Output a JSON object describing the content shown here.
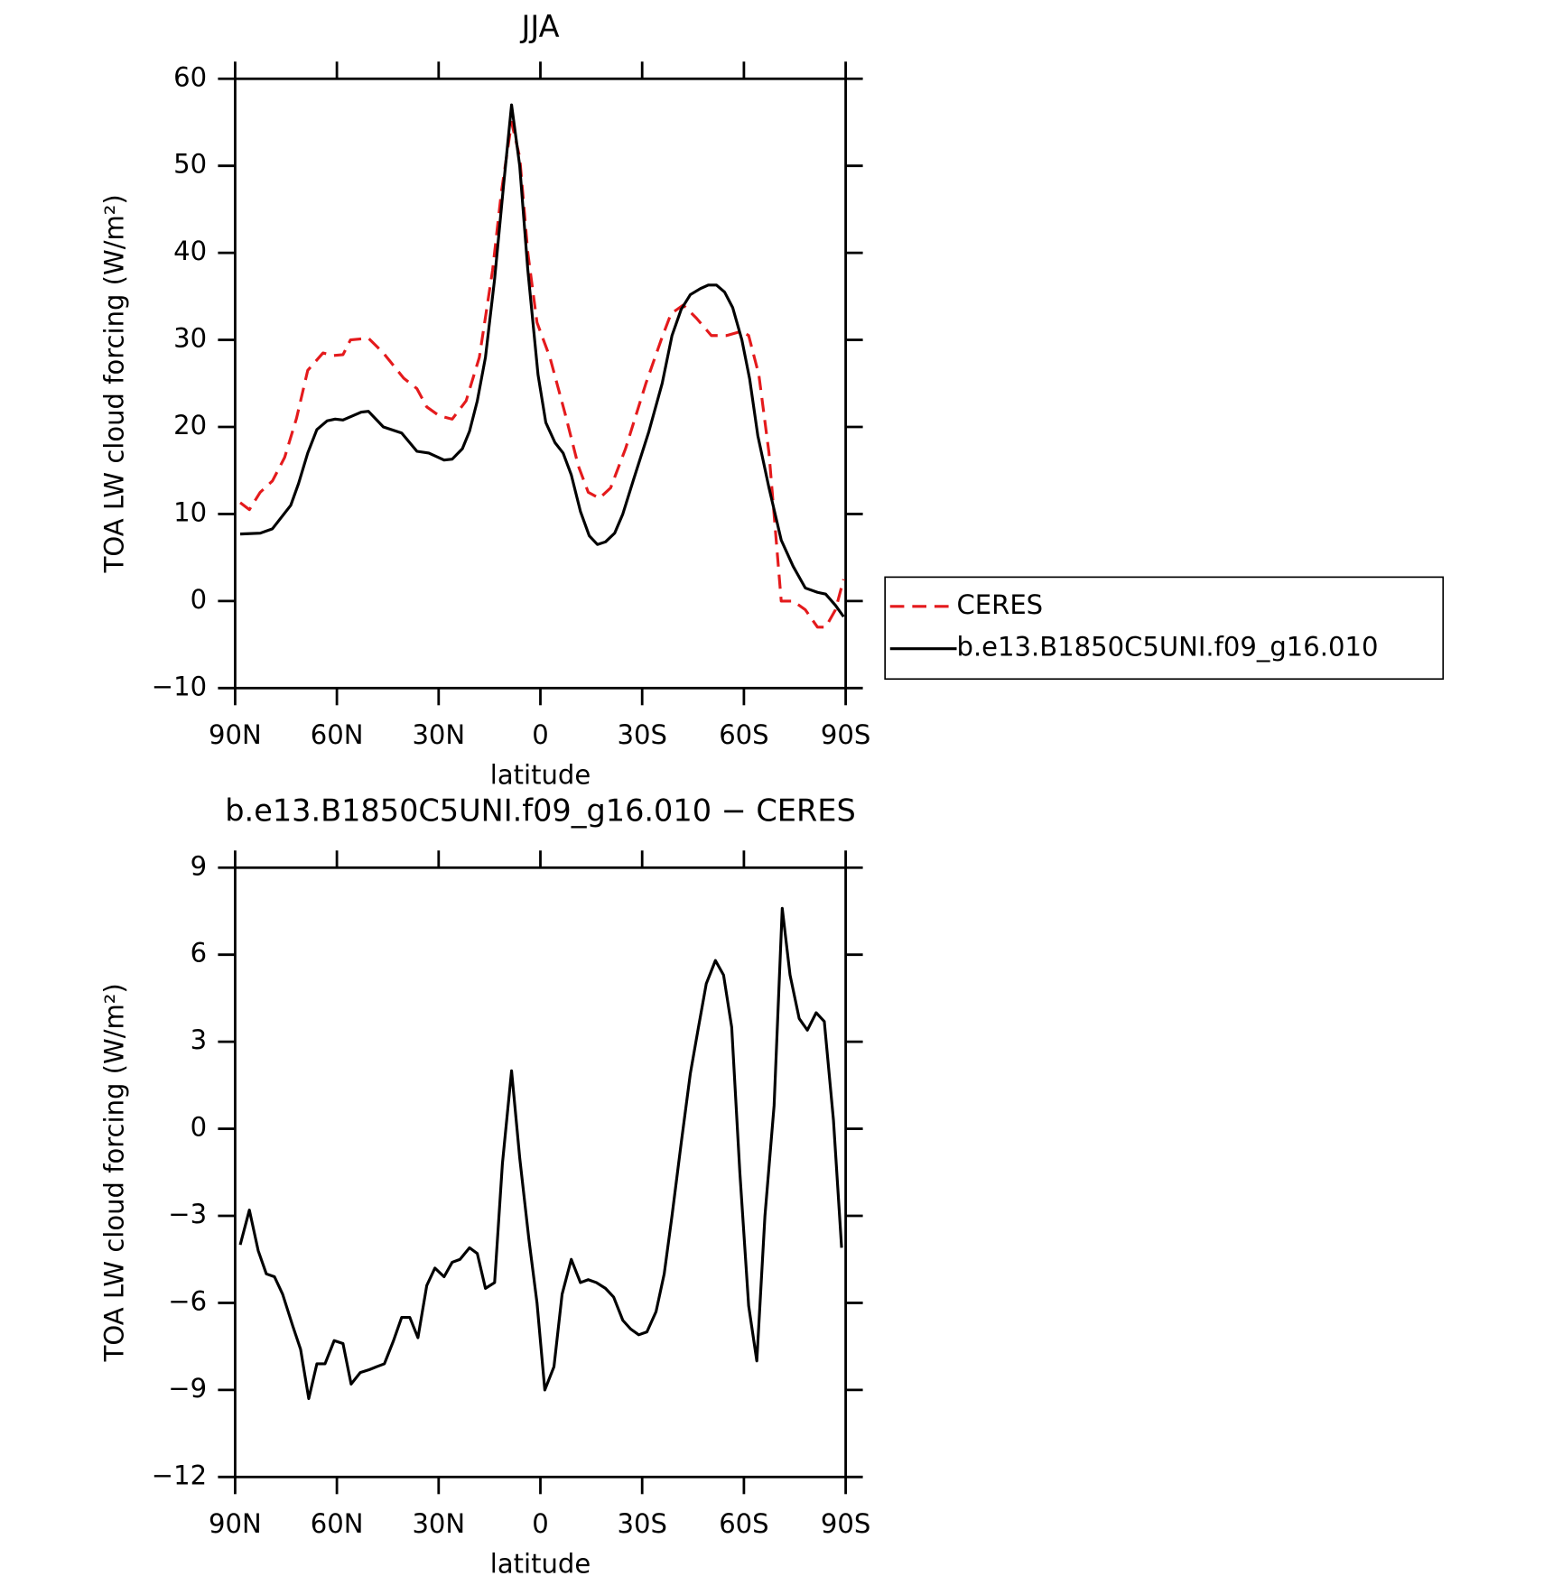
{
  "chart_data": [
    {
      "type": "line",
      "title": "JJA",
      "x_label": "latitude",
      "y_label": "TOA LW cloud forcing (W/m²)",
      "xlim": [
        90,
        -90
      ],
      "xticks": [
        {
          "value": 90,
          "label": "90N"
        },
        {
          "value": 60,
          "label": "60N"
        },
        {
          "value": 30,
          "label": "30N"
        },
        0,
        {
          "value": -30,
          "label": "30S"
        },
        {
          "value": -60,
          "label": "60S"
        },
        {
          "value": -90,
          "label": "90S"
        }
      ],
      "ylim": [
        -10,
        60
      ],
      "yticks": [
        {
          "value": -10,
          "label": "−10"
        },
        0,
        10,
        20,
        30,
        40,
        50,
        60
      ],
      "legend": "right",
      "series": [
        {
          "name": "CERES",
          "color": "#e41a1c",
          "dash": true,
          "x": [
            88.5,
            85.8,
            82.6,
            79,
            75.4,
            71.9,
            68.6,
            64.1,
            61.1,
            58.2,
            56,
            50.7,
            46.3,
            40.3,
            36.4,
            33.5,
            29.9,
            26,
            21.9,
            18,
            14.1,
            11.5,
            8.5,
            6.1,
            3.7,
            1,
            -2.8,
            -7.3,
            -11.2,
            -14.1,
            -17.4,
            -20.7,
            -25.1,
            -31.1,
            -35.6,
            -38.5,
            -42.1,
            -46,
            -50.4,
            -54.9,
            -59.4,
            -61.4,
            -64.4,
            -67.4,
            -71,
            -74.5,
            -78.1,
            -81.7,
            -84.1,
            -87,
            -89.4
          ],
          "values": [
            11.3,
            10.5,
            12.5,
            13.8,
            16.5,
            21,
            26.5,
            28.5,
            28.2,
            28.3,
            30,
            30.2,
            28.5,
            25.6,
            24.4,
            22.3,
            21.3,
            20.9,
            23,
            28,
            38,
            47,
            55,
            51,
            40,
            32,
            28,
            21.5,
            15.5,
            12.5,
            11.8,
            13,
            17.5,
            25,
            30,
            33,
            34,
            32.5,
            30.5,
            30.5,
            31,
            30.5,
            26,
            17,
            0,
            0,
            -1,
            -3,
            -3,
            -1,
            2.5
          ]
        },
        {
          "name": "b.e13.B1850C5UNI.f09_g16.010",
          "color": "#000000",
          "dash": false,
          "x": [
            88.5,
            82.6,
            79,
            73.6,
            71.3,
            68.6,
            65.9,
            62.9,
            60.5,
            58.2,
            55.2,
            52.8,
            50.7,
            46.3,
            40.9,
            36.4,
            32.9,
            28.4,
            26,
            23,
            20.9,
            18.6,
            16.2,
            13.5,
            10.8,
            8.5,
            6.1,
            3.7,
            0.7,
            -1.6,
            -4.3,
            -6.7,
            -9.1,
            -11.8,
            -14.4,
            -16.8,
            -19.2,
            -21.9,
            -24.3,
            -27.5,
            -32,
            -35.9,
            -38.8,
            -41.5,
            -44.2,
            -47.2,
            -49.5,
            -51.9,
            -54.3,
            -56.7,
            -59.4,
            -61.7,
            -64.1,
            -67.4,
            -71,
            -74.5,
            -78.1,
            -81.7,
            -84.1,
            -87,
            -89.4
          ],
          "values": [
            7.7,
            7.8,
            8.3,
            11,
            13.5,
            17,
            19.7,
            20.7,
            20.9,
            20.8,
            21.3,
            21.7,
            21.8,
            20,
            19.3,
            17.2,
            17,
            16.2,
            16.3,
            17.5,
            19.5,
            23,
            28,
            37,
            48,
            57,
            50,
            38,
            26,
            20.5,
            18.2,
            17,
            14.5,
            10.3,
            7.5,
            6.5,
            6.8,
            7.8,
            10,
            14,
            19.5,
            25,
            30.5,
            33.5,
            35.2,
            35.9,
            36.3,
            36.3,
            35.5,
            33.7,
            30,
            25.5,
            19,
            13,
            7,
            4,
            1.5,
            1,
            0.8,
            -0.5,
            -1.8
          ]
        }
      ]
    },
    {
      "type": "line",
      "title": "b.e13.B1850C5UNI.f09_g16.010 − CERES",
      "x_label": "latitude",
      "y_label": "TOA LW cloud forcing (W/m²)",
      "xlim": [
        90,
        -90
      ],
      "xticks": [
        {
          "value": 90,
          "label": "90N"
        },
        {
          "value": 60,
          "label": "60N"
        },
        {
          "value": 30,
          "label": "30N"
        },
        0,
        {
          "value": -30,
          "label": "30S"
        },
        {
          "value": -60,
          "label": "60S"
        },
        {
          "value": -90,
          "label": "90S"
        }
      ],
      "ylim": [
        -12,
        9
      ],
      "yticks": [
        {
          "value": -12,
          "label": "−12"
        },
        {
          "value": -9,
          "label": "−9"
        },
        {
          "value": -6,
          "label": "−6"
        },
        {
          "value": -3,
          "label": "−3"
        },
        0,
        3,
        6,
        9
      ],
      "color": "#000000",
      "x": [
        88.5,
        85.8,
        83.2,
        80.8,
        78.4,
        76,
        73,
        70.7,
        68.3,
        65.9,
        63.5,
        60.8,
        58.2,
        55.8,
        53.1,
        50.4,
        48.3,
        46,
        43.3,
        40.9,
        38.5,
        36.1,
        33.5,
        31.1,
        28.4,
        26,
        23.7,
        20.9,
        18.6,
        16.2,
        13.5,
        11.2,
        8.5,
        6.1,
        3.4,
        1,
        -1.3,
        -4,
        -6.4,
        -9.1,
        -11.8,
        -14.1,
        -16.5,
        -19.2,
        -21.6,
        -24.3,
        -26.6,
        -29,
        -31.4,
        -34.1,
        -36.5,
        -38.8,
        -41.5,
        -44.2,
        -46.6,
        -48.9,
        -51.6,
        -54,
        -56.4,
        -58.8,
        -61.4,
        -63.8,
        -66.2,
        -68.9,
        -71.3,
        -73.6,
        -76.3,
        -78.7,
        -81.3,
        -83.7,
        -86.4,
        -88.8
      ],
      "values": [
        -4,
        -2.8,
        -4.2,
        -5,
        -5.1,
        -5.7,
        -6.8,
        -7.6,
        -9.3,
        -8.1,
        -8.1,
        -7.3,
        -7.4,
        -8.8,
        -8.4,
        -8.3,
        -8.2,
        -8.1,
        -7.3,
        -6.5,
        -6.5,
        -7.2,
        -5.4,
        -4.8,
        -5.1,
        -4.6,
        -4.5,
        -4.1,
        -4.3,
        -5.5,
        -5.3,
        -1.2,
        2,
        -1,
        -3.8,
        -6,
        -9,
        -8.2,
        -5.7,
        -4.5,
        -5.3,
        -5.2,
        -5.3,
        -5.5,
        -5.8,
        -6.6,
        -6.9,
        -7.1,
        -7,
        -6.3,
        -5,
        -3,
        -0.5,
        1.9,
        3.5,
        5,
        5.8,
        5.3,
        3.5,
        -1.5,
        -6.1,
        -8,
        -3,
        0.8,
        7.6,
        5.3,
        3.8,
        3.4,
        4,
        3.7,
        0.3,
        -4.1
      ]
    }
  ]
}
